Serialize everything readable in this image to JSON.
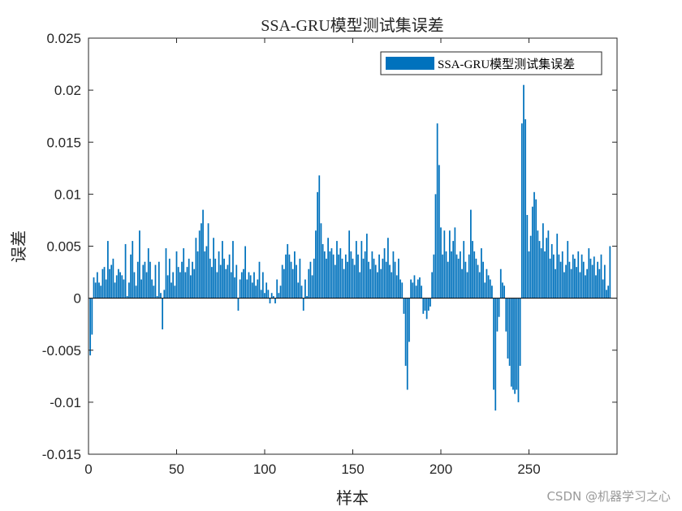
{
  "watermark": "CSDN @机器学习之心",
  "chart_data": {
    "type": "bar",
    "title": "SSA-GRU模型测试集误差",
    "xlabel": "样本",
    "ylabel": "误差",
    "xlim": [
      0,
      300
    ],
    "ylim": [
      -0.015,
      0.025
    ],
    "xticks": [
      0,
      50,
      100,
      150,
      200,
      250
    ],
    "yticks": [
      -0.015,
      -0.01,
      -0.005,
      0,
      0.005,
      0.01,
      0.015,
      0.02,
      0.025
    ],
    "xtick_labels": [
      "0",
      "50",
      "100",
      "150",
      "200",
      "250"
    ],
    "ytick_labels": [
      "-0.015",
      "-0.01",
      "-0.005",
      "0",
      "0.005",
      "0.01",
      "0.015",
      "0.02",
      "0.025"
    ],
    "grid": false,
    "legend_position": "top-right",
    "bar_color": "#0072BD",
    "series": [
      {
        "name": "SSA-GRU模型测试集误差",
        "x_start": 1,
        "values": [
          -0.0055,
          -0.0035,
          0.002,
          0.0015,
          0.0025,
          0.0015,
          0.0012,
          0.0028,
          0.003,
          0.0018,
          0.0055,
          0.0028,
          0.0032,
          0.0038,
          0.0015,
          0.0022,
          0.0028,
          0.0025,
          0.0022,
          0.0018,
          0.0052,
          0.0002,
          0.0015,
          0.0042,
          0.0055,
          0.0025,
          0.0012,
          0.0035,
          0.0065,
          0.0018,
          0.0032,
          0.0035,
          0.0025,
          0.0048,
          0.0035,
          0.0018,
          0.0012,
          0.0032,
          0.0002,
          0.0035,
          0.0005,
          -0.003,
          0.0008,
          0.0048,
          0.0022,
          0.0038,
          0.0015,
          0.0025,
          0.0012,
          0.0045,
          0.003,
          0.0025,
          0.0035,
          0.0048,
          0.0025,
          0.003,
          0.0038,
          0.0022,
          0.0035,
          0.0028,
          0.0058,
          0.0045,
          0.0065,
          0.0072,
          0.0085,
          0.0045,
          0.005,
          0.0072,
          0.0038,
          0.003,
          0.0058,
          0.0038,
          0.0025,
          0.0045,
          0.0032,
          0.0055,
          0.0038,
          0.0028,
          0.0032,
          0.0042,
          0.0025,
          0.0055,
          0.002,
          0.0032,
          -0.0012,
          0.0018,
          0.0025,
          0.0028,
          0.005,
          0.0018,
          0.0025,
          0.0022,
          0.0015,
          0.0025,
          0.0012,
          0.0018,
          0.0035,
          0.0008,
          0.0025,
          0.0005,
          0.0015,
          0.0008,
          -0.0005,
          0.0005,
          0.0002,
          -0.0005,
          0.0018,
          0.0005,
          0.0012,
          0.0032,
          0.0028,
          0.0042,
          0.0052,
          0.0042,
          0.0035,
          0.0028,
          0.0045,
          0.0032,
          0.0015,
          0.0038,
          0.0012,
          -0.0012,
          0.0018,
          0.0002,
          0.0028,
          0.0035,
          0.0022,
          0.0038,
          0.0065,
          0.0102,
          0.0118,
          0.0072,
          0.0052,
          0.0045,
          0.0038,
          0.0058,
          0.0045,
          0.0048,
          0.0042,
          0.0032,
          0.0055,
          0.0042,
          0.0048,
          0.0038,
          0.0028,
          0.0042,
          0.0035,
          0.0065,
          0.0045,
          0.0038,
          0.0032,
          0.0055,
          0.0042,
          0.0025,
          0.0055,
          0.0038,
          0.0045,
          0.0062,
          0.0035,
          0.0028,
          0.0045,
          0.0038,
          0.0032,
          0.0025,
          0.0042,
          0.0028,
          0.0038,
          0.0048,
          0.0035,
          0.0058,
          0.0032,
          0.0025,
          0.0045,
          0.0035,
          0.0022,
          0.0038,
          0.0018,
          0.0015,
          -0.0015,
          -0.0065,
          -0.0088,
          -0.0042,
          0.0018,
          0.0015,
          0.0022,
          0.0012,
          0.0018,
          0.002,
          0.0012,
          -0.0015,
          -0.0012,
          -0.002,
          -0.0012,
          -0.0008,
          0.0025,
          0.0042,
          0.01,
          0.0168,
          0.0128,
          0.0068,
          0.0042,
          0.0065,
          0.0045,
          0.0035,
          0.0065,
          0.0045,
          0.0055,
          0.0068,
          0.0042,
          0.0038,
          0.0045,
          0.0028,
          0.0055,
          0.0035,
          0.0025,
          0.0042,
          0.0085,
          0.0055,
          0.0045,
          0.0038,
          0.0032,
          0.0025,
          0.0048,
          0.0035,
          0.0015,
          0.0028,
          0.0022,
          0.0018,
          0.0012,
          -0.0088,
          -0.0108,
          -0.0032,
          -0.0018,
          0.0028,
          0.0015,
          0.0012,
          -0.0032,
          -0.0058,
          -0.0065,
          -0.0085,
          -0.0088,
          -0.0092,
          -0.0088,
          -0.01,
          -0.0065,
          0.0168,
          0.0205,
          0.0172,
          0.008,
          0.0045,
          0.006,
          0.0088,
          0.0102,
          0.0095,
          0.0065,
          0.0055,
          0.0048,
          0.0072,
          0.0045,
          0.0058,
          0.0065,
          0.0038,
          0.0052,
          0.0042,
          0.0028,
          0.0062,
          0.0042,
          0.0035,
          0.0045,
          0.0025,
          0.0032,
          0.0055,
          0.0035,
          0.0028,
          0.0042,
          0.0038,
          0.003,
          0.0045,
          0.0025,
          0.0042,
          0.0035,
          0.0022,
          0.0028,
          0.0048,
          0.0038,
          0.0032,
          0.004,
          0.0022,
          0.0035,
          0.0028,
          0.0042,
          0.0018,
          0.0032,
          0.0008,
          0.0012,
          0.005
        ]
      }
    ]
  }
}
